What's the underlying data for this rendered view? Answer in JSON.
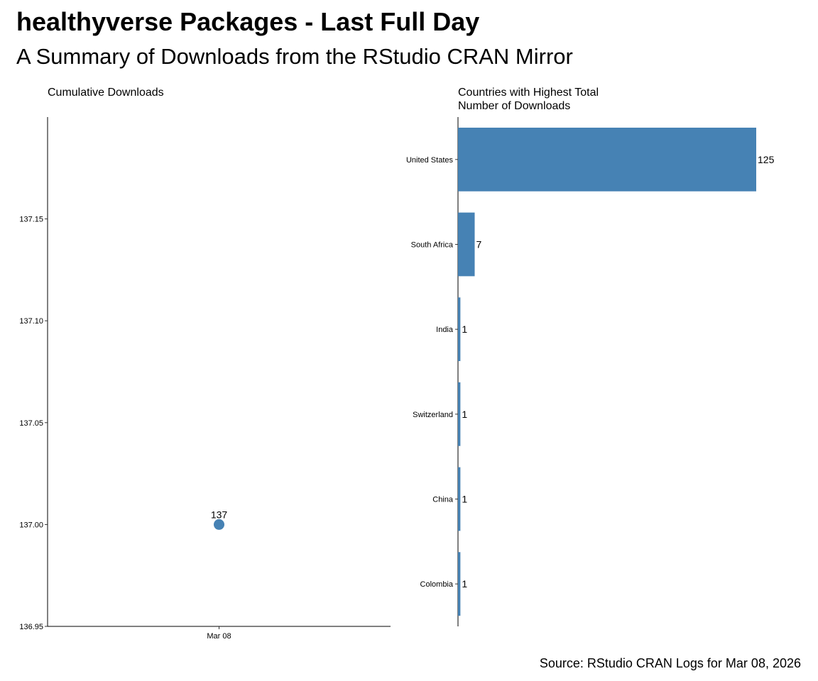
{
  "title": "healthyverse Packages - Last Full Day",
  "subtitle": "A Summary of Downloads from the RStudio CRAN Mirror",
  "caption": "Source: RStudio CRAN Logs for Mar 08, 2026",
  "colors": {
    "accent": "#4682B4"
  },
  "chart_data": [
    {
      "type": "scatter",
      "title": "Cumulative Downloads",
      "xlabel": "",
      "ylabel": "",
      "x": [
        "Mar 08"
      ],
      "values": [
        137
      ],
      "point_labels": [
        "137"
      ],
      "ylim": [
        136.95,
        137.2
      ],
      "yticks": [
        136.95,
        137.0,
        137.05,
        137.1,
        137.15
      ],
      "ytick_labels": [
        "136.95",
        "137.00",
        "137.05",
        "137.10",
        "137.15"
      ],
      "grid": false
    },
    {
      "type": "bar",
      "orientation": "horizontal",
      "title": "Countries with Highest Total\nNumber of Downloads",
      "xlabel": "",
      "ylabel": "",
      "categories": [
        "United States",
        "South Africa",
        "India",
        "Switzerland",
        "China",
        "Colombia"
      ],
      "values": [
        125,
        7,
        1,
        1,
        1,
        1
      ],
      "value_labels": [
        "125",
        "7",
        "1",
        "1",
        "1",
        "1"
      ],
      "xlim": [
        0,
        125
      ],
      "grid": false
    }
  ]
}
